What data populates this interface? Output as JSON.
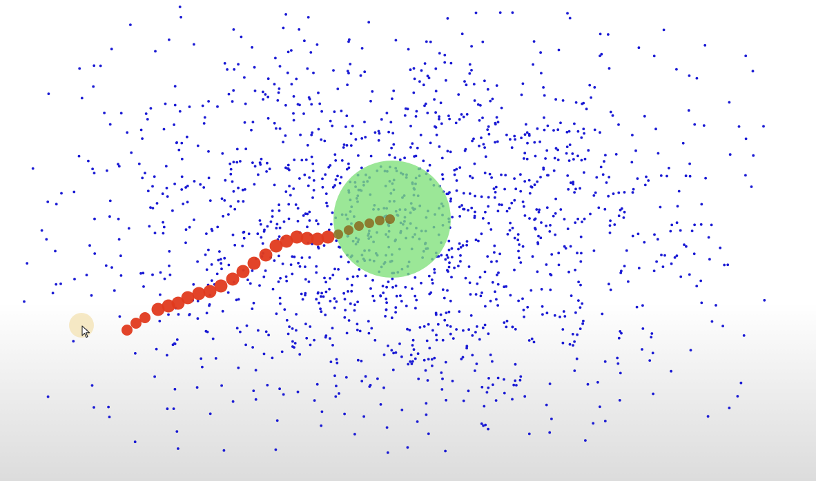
{
  "scene": {
    "description_free": true,
    "background_color": "#ffffff",
    "particle_color": "#1a1ad4",
    "particle_count": 1500,
    "target_color": "#7fe07a",
    "target_opacity": 0.78,
    "trail_color": "#e03a1e",
    "trail_overlap_color": "#8a6a1e",
    "click_highlight_color": "#f3e2b2"
  },
  "icons": {
    "cursor": "mouse-pointer-icon"
  }
}
